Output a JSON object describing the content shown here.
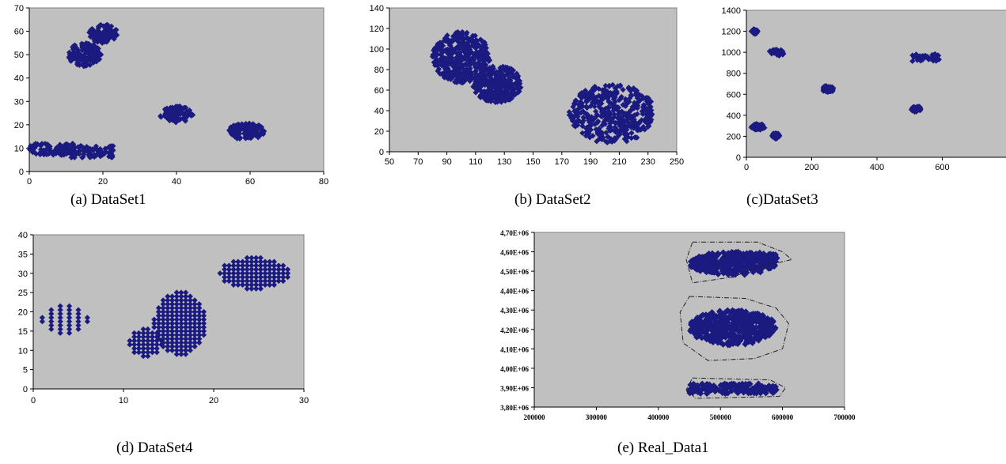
{
  "chart_data": [
    {
      "type": "scatter",
      "caption": "(a) DataSet1",
      "xlim": [
        0,
        80
      ],
      "ylim": [
        0,
        70
      ],
      "xticks": [
        0,
        20,
        40,
        60,
        80
      ],
      "yticks": [
        0,
        10,
        20,
        30,
        40,
        50,
        60,
        70
      ],
      "grid": false,
      "clusters": [
        {
          "cx": 6,
          "cy": 9.5,
          "rx": 6,
          "ry": 2.5,
          "shape": "rect"
        },
        {
          "cx": 17,
          "cy": 8.5,
          "rx": 6,
          "ry": 2.5,
          "shape": "rect"
        },
        {
          "cx": 15,
          "cy": 50,
          "rx": 4.5,
          "ry": 5,
          "shape": "ellipse"
        },
        {
          "cx": 20,
          "cy": 59,
          "rx": 4,
          "ry": 4,
          "shape": "ellipse"
        },
        {
          "cx": 40,
          "cy": 24.5,
          "rx": 4.5,
          "ry": 3.5,
          "shape": "ellipse"
        },
        {
          "cx": 59,
          "cy": 17,
          "rx": 5,
          "ry": 4,
          "shape": "ellipse"
        }
      ]
    },
    {
      "type": "scatter",
      "caption": "(b) DataSet2",
      "xlim": [
        50,
        250
      ],
      "ylim": [
        0,
        140
      ],
      "xticks": [
        50,
        70,
        90,
        110,
        130,
        150,
        170,
        190,
        210,
        230,
        250
      ],
      "yticks": [
        0,
        20,
        40,
        60,
        80,
        100,
        120,
        140
      ],
      "grid": false,
      "clusters": [
        {
          "cx": 100,
          "cy": 92,
          "rx": 20,
          "ry": 25,
          "shape": "ellipse"
        },
        {
          "cx": 125,
          "cy": 66,
          "rx": 17,
          "ry": 18,
          "shape": "ellipse"
        },
        {
          "cx": 205,
          "cy": 37,
          "rx": 30,
          "ry": 29,
          "shape": "ellipse"
        }
      ]
    },
    {
      "type": "scatter",
      "caption": "(c)DataSet3",
      "xlim": [
        0,
        800
      ],
      "ylim": [
        0,
        1400
      ],
      "xticks": [
        0,
        200,
        400,
        600
      ],
      "yticks": [
        0,
        200,
        400,
        600,
        800,
        1000,
        1200,
        1400
      ],
      "grid": false,
      "clusters": [
        {
          "cx": 25,
          "cy": 1200,
          "rx": 10,
          "ry": 25,
          "shape": "ellipse"
        },
        {
          "cx": 35,
          "cy": 290,
          "rx": 22,
          "ry": 30,
          "shape": "ellipse"
        },
        {
          "cx": 95,
          "cy": 1000,
          "rx": 25,
          "ry": 35,
          "shape": "ellipse"
        },
        {
          "cx": 90,
          "cy": 205,
          "rx": 12,
          "ry": 28,
          "shape": "ellipse"
        },
        {
          "cx": 250,
          "cy": 650,
          "rx": 18,
          "ry": 32,
          "shape": "ellipse"
        },
        {
          "cx": 550,
          "cy": 950,
          "rx": 45,
          "ry": 35,
          "shape": "rect"
        },
        {
          "cx": 520,
          "cy": 460,
          "rx": 15,
          "ry": 30,
          "shape": "ellipse"
        }
      ]
    },
    {
      "type": "scatter",
      "caption": "(d) DataSet4",
      "xlim": [
        0,
        30
      ],
      "ylim": [
        0,
        40
      ],
      "xticks": [
        0,
        10,
        20,
        30
      ],
      "yticks": [
        0,
        5,
        10,
        15,
        20,
        25,
        30,
        35,
        40
      ],
      "grid": false,
      "clusters": [
        {
          "cx": 3.5,
          "cy": 18,
          "rx": 2.5,
          "ry": 3.5,
          "shape": "ellipse",
          "grid": [
            1,
            1
          ]
        },
        {
          "cx": 12.5,
          "cy": 12,
          "rx": 1.8,
          "ry": 3.5,
          "shape": "ellipse",
          "grid": [
            0.5,
            1
          ]
        },
        {
          "cx": 16.3,
          "cy": 17,
          "rx": 2.9,
          "ry": 8,
          "shape": "ellipse",
          "grid": [
            0.5,
            1
          ]
        },
        {
          "cx": 24.5,
          "cy": 30,
          "rx": 3.8,
          "ry": 4,
          "shape": "ellipse",
          "grid": [
            0.5,
            1
          ]
        }
      ]
    },
    {
      "type": "scatter",
      "caption": "(e) Real_Data1",
      "xlim": [
        200000,
        700000
      ],
      "ylim": [
        3800000,
        4700000
      ],
      "xticks": [
        "200000",
        "300000",
        "400000",
        "500000",
        "600000",
        "700000"
      ],
      "yticks": [
        "3,80E+06",
        "3,90E+06",
        "4,00E+06",
        "4,10E+06",
        "4,20E+06",
        "4,30E+06",
        "4,40E+06",
        "4,50E+06",
        "4,60E+06",
        "4,70E+06"
      ],
      "grid": false,
      "clusters": [
        {
          "cx": 520000,
          "cy": 4540000,
          "rx": 70000,
          "ry": 60000,
          "shape": "ellipse"
        },
        {
          "cx": 565000,
          "cy": 4575000,
          "rx": 30000,
          "ry": 20000,
          "shape": "ellipse"
        },
        {
          "cx": 520000,
          "cy": 4210000,
          "rx": 70000,
          "ry": 90000,
          "shape": "ellipse"
        },
        {
          "cx": 520000,
          "cy": 3895000,
          "rx": 70000,
          "ry": 25000,
          "shape": "rect"
        }
      ]
    }
  ]
}
